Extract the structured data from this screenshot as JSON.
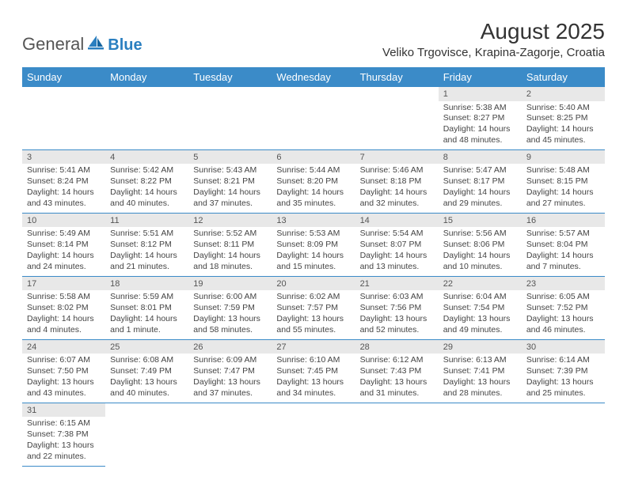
{
  "logo": {
    "general": "General",
    "blue": "Blue"
  },
  "title": {
    "month": "August 2025",
    "location": "Veliko Trgovisce, Krapina-Zagorje, Croatia"
  },
  "colors": {
    "header_bg": "#3b8bc8",
    "header_fg": "#ffffff",
    "daynum_bg": "#e8e8e8",
    "rule": "#3b8bc8"
  },
  "weekdays": [
    "Sunday",
    "Monday",
    "Tuesday",
    "Wednesday",
    "Thursday",
    "Friday",
    "Saturday"
  ],
  "grid": [
    [
      null,
      null,
      null,
      null,
      null,
      {
        "n": "1",
        "sunrise": "5:38 AM",
        "sunset": "8:27 PM",
        "daylight": "14 hours and 48 minutes."
      },
      {
        "n": "2",
        "sunrise": "5:40 AM",
        "sunset": "8:25 PM",
        "daylight": "14 hours and 45 minutes."
      }
    ],
    [
      {
        "n": "3",
        "sunrise": "5:41 AM",
        "sunset": "8:24 PM",
        "daylight": "14 hours and 43 minutes."
      },
      {
        "n": "4",
        "sunrise": "5:42 AM",
        "sunset": "8:22 PM",
        "daylight": "14 hours and 40 minutes."
      },
      {
        "n": "5",
        "sunrise": "5:43 AM",
        "sunset": "8:21 PM",
        "daylight": "14 hours and 37 minutes."
      },
      {
        "n": "6",
        "sunrise": "5:44 AM",
        "sunset": "8:20 PM",
        "daylight": "14 hours and 35 minutes."
      },
      {
        "n": "7",
        "sunrise": "5:46 AM",
        "sunset": "8:18 PM",
        "daylight": "14 hours and 32 minutes."
      },
      {
        "n": "8",
        "sunrise": "5:47 AM",
        "sunset": "8:17 PM",
        "daylight": "14 hours and 29 minutes."
      },
      {
        "n": "9",
        "sunrise": "5:48 AM",
        "sunset": "8:15 PM",
        "daylight": "14 hours and 27 minutes."
      }
    ],
    [
      {
        "n": "10",
        "sunrise": "5:49 AM",
        "sunset": "8:14 PM",
        "daylight": "14 hours and 24 minutes."
      },
      {
        "n": "11",
        "sunrise": "5:51 AM",
        "sunset": "8:12 PM",
        "daylight": "14 hours and 21 minutes."
      },
      {
        "n": "12",
        "sunrise": "5:52 AM",
        "sunset": "8:11 PM",
        "daylight": "14 hours and 18 minutes."
      },
      {
        "n": "13",
        "sunrise": "5:53 AM",
        "sunset": "8:09 PM",
        "daylight": "14 hours and 15 minutes."
      },
      {
        "n": "14",
        "sunrise": "5:54 AM",
        "sunset": "8:07 PM",
        "daylight": "14 hours and 13 minutes."
      },
      {
        "n": "15",
        "sunrise": "5:56 AM",
        "sunset": "8:06 PM",
        "daylight": "14 hours and 10 minutes."
      },
      {
        "n": "16",
        "sunrise": "5:57 AM",
        "sunset": "8:04 PM",
        "daylight": "14 hours and 7 minutes."
      }
    ],
    [
      {
        "n": "17",
        "sunrise": "5:58 AM",
        "sunset": "8:02 PM",
        "daylight": "14 hours and 4 minutes."
      },
      {
        "n": "18",
        "sunrise": "5:59 AM",
        "sunset": "8:01 PM",
        "daylight": "14 hours and 1 minute."
      },
      {
        "n": "19",
        "sunrise": "6:00 AM",
        "sunset": "7:59 PM",
        "daylight": "13 hours and 58 minutes."
      },
      {
        "n": "20",
        "sunrise": "6:02 AM",
        "sunset": "7:57 PM",
        "daylight": "13 hours and 55 minutes."
      },
      {
        "n": "21",
        "sunrise": "6:03 AM",
        "sunset": "7:56 PM",
        "daylight": "13 hours and 52 minutes."
      },
      {
        "n": "22",
        "sunrise": "6:04 AM",
        "sunset": "7:54 PM",
        "daylight": "13 hours and 49 minutes."
      },
      {
        "n": "23",
        "sunrise": "6:05 AM",
        "sunset": "7:52 PM",
        "daylight": "13 hours and 46 minutes."
      }
    ],
    [
      {
        "n": "24",
        "sunrise": "6:07 AM",
        "sunset": "7:50 PM",
        "daylight": "13 hours and 43 minutes."
      },
      {
        "n": "25",
        "sunrise": "6:08 AM",
        "sunset": "7:49 PM",
        "daylight": "13 hours and 40 minutes."
      },
      {
        "n": "26",
        "sunrise": "6:09 AM",
        "sunset": "7:47 PM",
        "daylight": "13 hours and 37 minutes."
      },
      {
        "n": "27",
        "sunrise": "6:10 AM",
        "sunset": "7:45 PM",
        "daylight": "13 hours and 34 minutes."
      },
      {
        "n": "28",
        "sunrise": "6:12 AM",
        "sunset": "7:43 PM",
        "daylight": "13 hours and 31 minutes."
      },
      {
        "n": "29",
        "sunrise": "6:13 AM",
        "sunset": "7:41 PM",
        "daylight": "13 hours and 28 minutes."
      },
      {
        "n": "30",
        "sunrise": "6:14 AM",
        "sunset": "7:39 PM",
        "daylight": "13 hours and 25 minutes."
      }
    ],
    [
      {
        "n": "31",
        "sunrise": "6:15 AM",
        "sunset": "7:38 PM",
        "daylight": "13 hours and 22 minutes."
      },
      null,
      null,
      null,
      null,
      null,
      null
    ]
  ],
  "labels": {
    "sunrise": "Sunrise: ",
    "sunset": "Sunset: ",
    "daylight": "Daylight: "
  }
}
